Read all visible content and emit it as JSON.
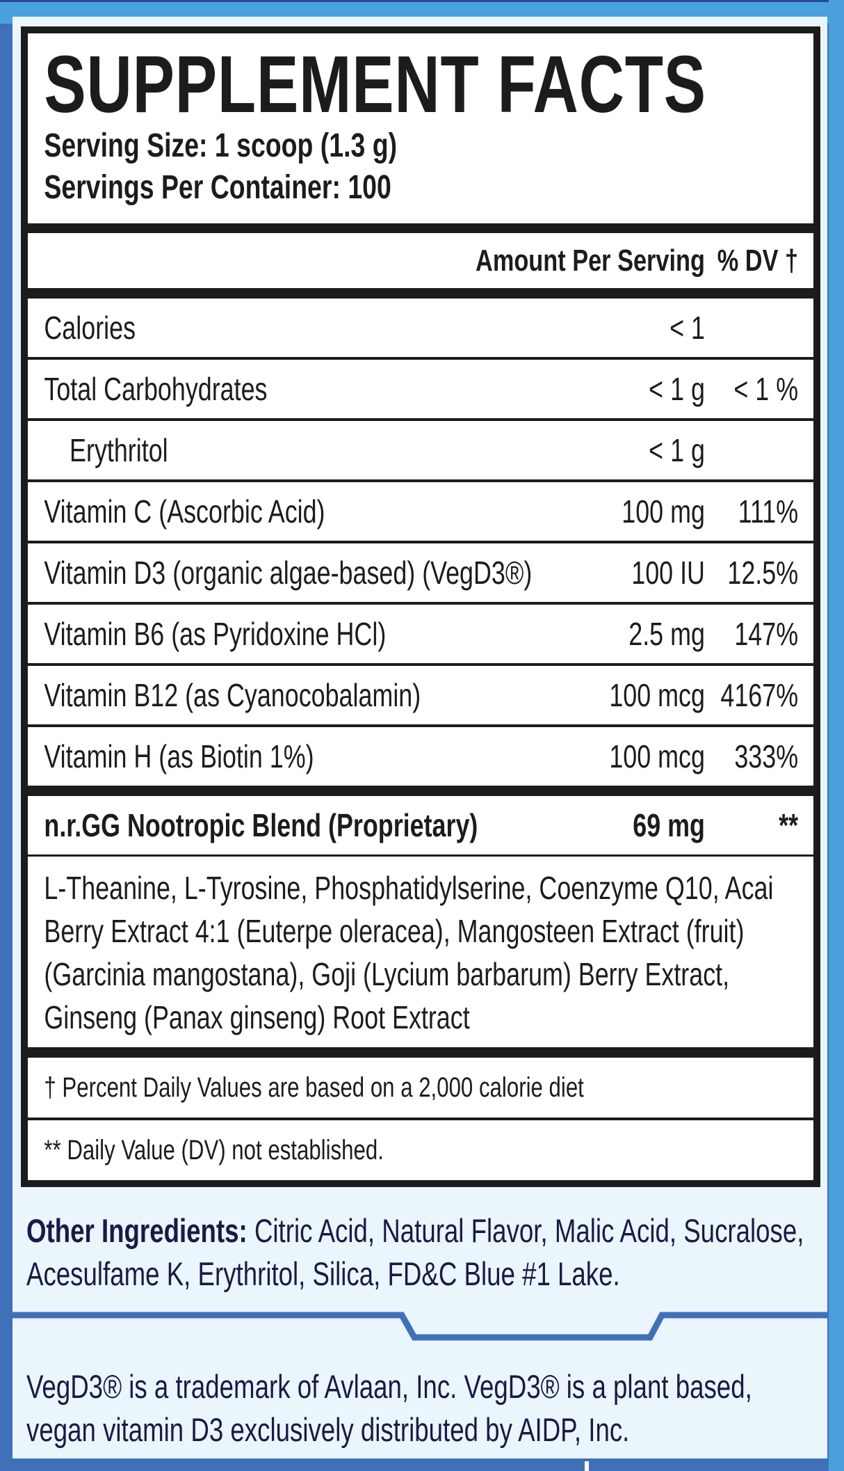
{
  "title": "SUPPLEMENT FACTS",
  "serving_size": "Serving Size: 1 scoop (1.3 g)",
  "servings_per_container": "Servings Per Container: 100",
  "header": {
    "amount": "Amount Per Serving",
    "dv": "% DV †"
  },
  "rows": [
    {
      "label": "Calories",
      "amount": "< 1",
      "dv": ""
    },
    {
      "label": "Total Carbohydrates",
      "amount": "< 1 g",
      "dv": "< 1 %"
    },
    {
      "label": "Erythritol",
      "amount": "< 1 g",
      "dv": ""
    },
    {
      "label": "Vitamin C (Ascorbic Acid)",
      "amount": "100 mg",
      "dv": "111%"
    },
    {
      "label": "Vitamin D3 (organic algae-based) (VegD3®)",
      "amount": "100 IU",
      "dv": "12.5%"
    },
    {
      "label": "Vitamin B6 (as Pyridoxine HCl)",
      "amount": "2.5 mg",
      "dv": "147%"
    },
    {
      "label": "Vitamin B12 (as Cyanocobalamin)",
      "amount": "100 mcg",
      "dv": "4167%"
    },
    {
      "label": "Vitamin H (as Biotin 1%)",
      "amount": "100 mcg",
      "dv": "333%"
    }
  ],
  "blend": {
    "label": "n.r.GG Nootropic Blend (Proprietary)",
    "amount": "69 mg",
    "dv": "**"
  },
  "blend_ingredients": "L-Theanine, L-Tyrosine, Phosphatidylserine, Coenzyme Q10, Acai Berry Extract 4:1 (Euterpe oleracea), Mangosteen Extract (fruit) (Garcinia mangostana), Goji (Lycium barbarum) Berry Extract, Ginseng (Panax ginseng) Root Extract",
  "footnotes": [
    "† Percent Daily Values are based on a 2,000 calorie diet",
    "** Daily Value (DV) not established."
  ],
  "other_ingredients": {
    "label": "Other Ingredients:",
    "text": " Citric Acid, Natural Flavor, Malic Acid, Sucralose, Acesulfame K, Erythritol, Silica, FD&C Blue #1 Lake."
  },
  "trademark": "VegD3® is a trademark of Avlaan, Inc. VegD3® is a plant based, vegan vitamin D3 exclusively distributed by AIDP, Inc.",
  "colors": {
    "background": "#4070b8",
    "accent": "#4aa0dc",
    "panel": "#eaf5fc",
    "text": "#1a1a44"
  }
}
